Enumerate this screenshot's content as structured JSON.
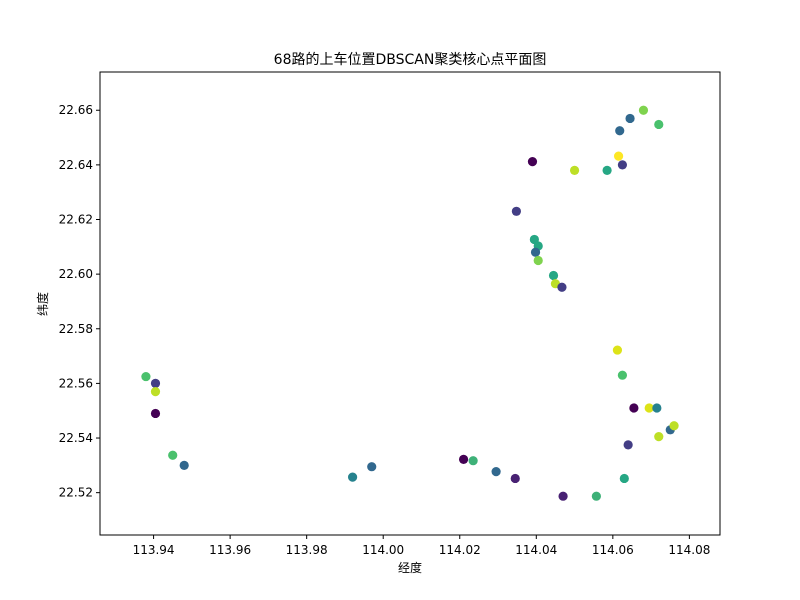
{
  "chart_data": {
    "type": "scatter",
    "title": "68路的上车位置DBSCAN聚类核心点平面图",
    "xlabel": "经度",
    "ylabel": "纬度",
    "xlim": [
      113.926,
      114.088
    ],
    "ylim": [
      22.5045,
      22.674
    ],
    "xticks": [
      "113.94",
      "113.96",
      "113.98",
      "114.00",
      "114.02",
      "114.04",
      "114.06",
      "114.08"
    ],
    "yticks": [
      "22.52",
      "22.54",
      "22.56",
      "22.58",
      "22.60",
      "22.62",
      "22.64",
      "22.66"
    ],
    "grid": false,
    "legend": "none",
    "colormap": "viridis",
    "points": [
      {
        "x": 113.938,
        "y": 22.5625,
        "color": "#4ac16d"
      },
      {
        "x": 113.9405,
        "y": 22.56,
        "color": "#433e85"
      },
      {
        "x": 113.9405,
        "y": 22.557,
        "color": "#bddf26"
      },
      {
        "x": 113.9405,
        "y": 22.549,
        "color": "#440154"
      },
      {
        "x": 113.945,
        "y": 22.5337,
        "color": "#4ac16d"
      },
      {
        "x": 113.948,
        "y": 22.53,
        "color": "#31688e"
      },
      {
        "x": 113.992,
        "y": 22.5257,
        "color": "#26828e"
      },
      {
        "x": 113.997,
        "y": 22.5295,
        "color": "#31688e"
      },
      {
        "x": 114.021,
        "y": 22.5322,
        "color": "#440154"
      },
      {
        "x": 114.0235,
        "y": 22.5317,
        "color": "#3eb178"
      },
      {
        "x": 114.0295,
        "y": 22.5277,
        "color": "#31688e"
      },
      {
        "x": 114.0345,
        "y": 22.5252,
        "color": "#482173"
      },
      {
        "x": 114.047,
        "y": 22.5187,
        "color": "#482173"
      },
      {
        "x": 114.0557,
        "y": 22.5187,
        "color": "#3eb178"
      },
      {
        "x": 114.063,
        "y": 22.5252,
        "color": "#26a784"
      },
      {
        "x": 114.064,
        "y": 22.5375,
        "color": "#433e85"
      },
      {
        "x": 114.0655,
        "y": 22.551,
        "color": "#440154"
      },
      {
        "x": 114.0695,
        "y": 22.551,
        "color": "#dde318"
      },
      {
        "x": 114.0715,
        "y": 22.551,
        "color": "#26828e"
      },
      {
        "x": 114.072,
        "y": 22.5405,
        "color": "#bddf26"
      },
      {
        "x": 114.075,
        "y": 22.543,
        "color": "#31688e"
      },
      {
        "x": 114.076,
        "y": 22.5445,
        "color": "#bddf26"
      },
      {
        "x": 114.0612,
        "y": 22.5722,
        "color": "#dde318"
      },
      {
        "x": 114.0625,
        "y": 22.563,
        "color": "#4ac16d"
      },
      {
        "x": 114.0348,
        "y": 22.623,
        "color": "#433e85"
      },
      {
        "x": 114.039,
        "y": 22.6412,
        "color": "#440154"
      },
      {
        "x": 114.0395,
        "y": 22.6127,
        "color": "#26a784"
      },
      {
        "x": 114.0405,
        "y": 22.6103,
        "color": "#26a784"
      },
      {
        "x": 114.0398,
        "y": 22.608,
        "color": "#31688e"
      },
      {
        "x": 114.0405,
        "y": 22.605,
        "color": "#7fd34e"
      },
      {
        "x": 114.0445,
        "y": 22.5995,
        "color": "#26a784"
      },
      {
        "x": 114.045,
        "y": 22.5965,
        "color": "#bddf26"
      },
      {
        "x": 114.0467,
        "y": 22.5952,
        "color": "#433e85"
      },
      {
        "x": 114.05,
        "y": 22.638,
        "color": "#bddf26"
      },
      {
        "x": 114.0585,
        "y": 22.638,
        "color": "#26a784"
      },
      {
        "x": 114.0615,
        "y": 22.6432,
        "color": "#fde725"
      },
      {
        "x": 114.0625,
        "y": 22.64,
        "color": "#433e85"
      },
      {
        "x": 114.0618,
        "y": 22.6525,
        "color": "#31688e"
      },
      {
        "x": 114.0645,
        "y": 22.657,
        "color": "#31688e"
      },
      {
        "x": 114.068,
        "y": 22.66,
        "color": "#7fd34e"
      },
      {
        "x": 114.072,
        "y": 22.6548,
        "color": "#4ac16d"
      }
    ]
  }
}
